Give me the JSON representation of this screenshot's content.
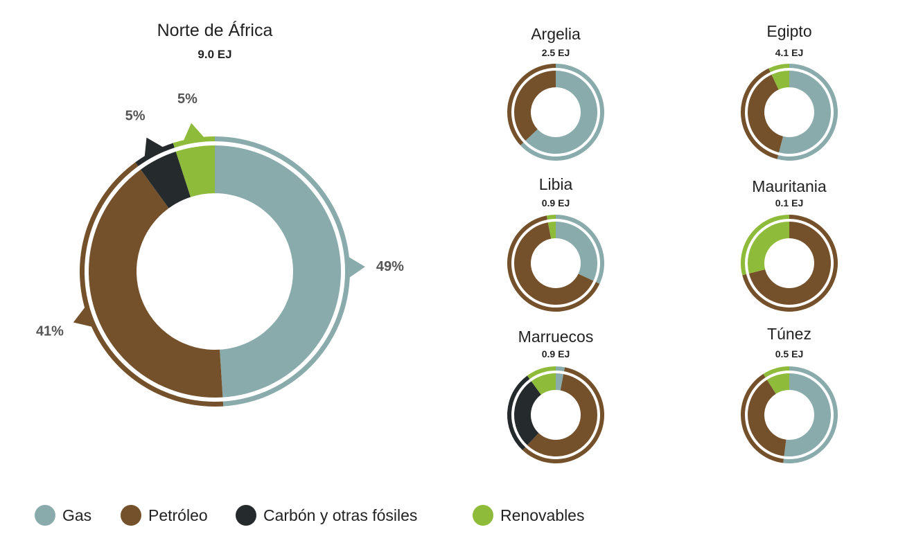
{
  "colors": {
    "gas": "#8aabac",
    "petroleo": "#74512b",
    "carbon": "#252a2c",
    "renovables": "#8fbb3a"
  },
  "legend": [
    {
      "key": "gas",
      "label": "Gas"
    },
    {
      "key": "petroleo",
      "label": "Petróleo"
    },
    {
      "key": "carbon",
      "label": "Carbón y otras fósiles"
    },
    {
      "key": "renovables",
      "label": "Renovables"
    }
  ],
  "chart_data": [
    {
      "type": "pie",
      "variant": "donut",
      "title": "Norte de África",
      "total": "9.0 EJ",
      "categories": [
        "Gas",
        "Petróleo",
        "Carbón y otras fósiles",
        "Renovables"
      ],
      "values": [
        49,
        41,
        5,
        5
      ],
      "labels": [
        "49%",
        "41%",
        "5%",
        "5%"
      ]
    },
    {
      "type": "pie",
      "variant": "donut",
      "title": "Argelia",
      "total": "2.5 EJ",
      "categories": [
        "Gas",
        "Petróleo",
        "Carbón y otras fósiles",
        "Renovables"
      ],
      "values": [
        63,
        37,
        0,
        0
      ]
    },
    {
      "type": "pie",
      "variant": "donut",
      "title": "Egipto",
      "total": "4.1 EJ",
      "categories": [
        "Gas",
        "Petróleo",
        "Carbón y otras fósiles",
        "Renovables"
      ],
      "values": [
        54,
        39,
        0,
        7
      ]
    },
    {
      "type": "pie",
      "variant": "donut",
      "title": "Libia",
      "total": "0.9 EJ",
      "categories": [
        "Gas",
        "Petróleo",
        "Carbón y otras fósiles",
        "Renovables"
      ],
      "values": [
        32,
        65,
        0,
        3
      ]
    },
    {
      "type": "pie",
      "variant": "donut",
      "title": "Mauritania",
      "total": "0.1 EJ",
      "categories": [
        "Gas",
        "Petróleo",
        "Carbón y otras fósiles",
        "Renovables"
      ],
      "values": [
        0,
        71,
        0,
        29
      ]
    },
    {
      "type": "pie",
      "variant": "donut",
      "title": "Marruecos",
      "total": "0.9 EJ",
      "categories": [
        "Gas",
        "Petróleo",
        "Carbón y otras fósiles",
        "Renovables"
      ],
      "values": [
        3,
        59,
        28,
        10
      ]
    },
    {
      "type": "pie",
      "variant": "donut",
      "title": "Túnez",
      "total": "0.5 EJ",
      "categories": [
        "Gas",
        "Petróleo",
        "Carbón y otras fósiles",
        "Renovables"
      ],
      "values": [
        52,
        39,
        0,
        9
      ]
    }
  ]
}
